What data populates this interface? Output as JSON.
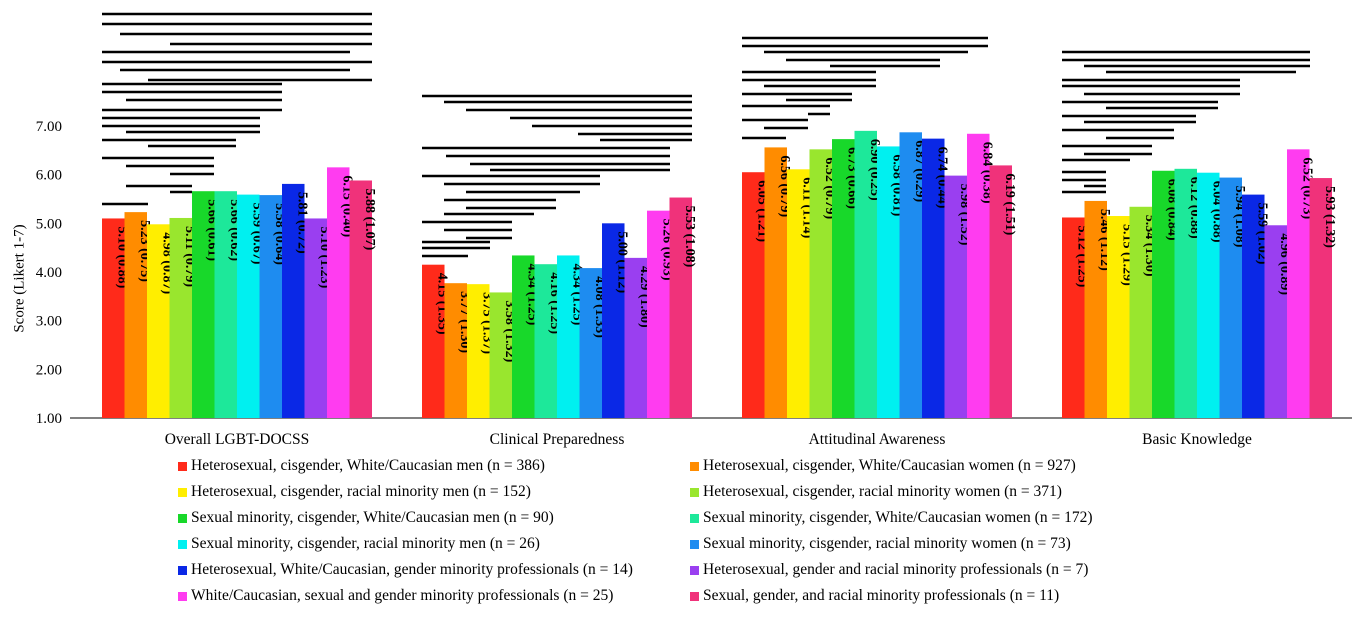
{
  "chart_data": {
    "type": "bar",
    "ylabel": "Score (Likert 1-7)",
    "ylim": [
      1,
      7
    ],
    "yticks": [
      "1.00",
      "2.00",
      "3.00",
      "4.00",
      "5.00",
      "6.00",
      "7.00"
    ],
    "categories": [
      "Overall LGBT-DOCSS",
      "Clinical Preparedness",
      "Attitudinal Awareness",
      "Basic Knowledge"
    ],
    "series": [
      {
        "name": "Heterosexual, cisgender, White/Caucasian men (n = 386)",
        "color": "#ff2a1a",
        "values": [
          5.1,
          4.15,
          6.05,
          5.12
        ],
        "labels": [
          "5.10 (0.88)",
          "4.15 (1.35)",
          "6.05 (1.21)",
          "5.12 (1.25)"
        ]
      },
      {
        "name": "Heterosexual, cisgender, White/Caucasian women (n = 927)",
        "color": "#ff8c00",
        "values": [
          5.23,
          3.77,
          6.56,
          5.46
        ],
        "labels": [
          "5.23 (0.75)",
          "3.77 (1.30)",
          "6.56 (0.79)",
          "5.46 (1.12)"
        ]
      },
      {
        "name": "Heterosexual, cisgender, racial minority men (n = 152)",
        "color": "#ffee00",
        "values": [
          4.98,
          3.75,
          6.11,
          5.15
        ],
        "labels": [
          "4.98 (0.87)",
          "3.75 (1.37)",
          "6.11 (1.14)",
          "5.15 (1.29)"
        ]
      },
      {
        "name": "Heterosexual, cisgender, racial minority women (n = 371)",
        "color": "#99e62e",
        "values": [
          5.11,
          3.58,
          6.52,
          5.34
        ],
        "labels": [
          "5.11 (0.79)",
          "3.58 (1.32)",
          "6.52 (0.79)",
          "5.34 (1.30)"
        ]
      },
      {
        "name": "Sexual minority, cisgender, White/Caucasian men (n = 90)",
        "color": "#18d82a",
        "values": [
          5.66,
          4.34,
          6.73,
          6.08
        ],
        "labels": [
          "5.66 (0.61)",
          "4.34 (1.25)",
          "6.73 (0.66)",
          "6.08 (0.84)"
        ]
      },
      {
        "name": "Sexual minority, cisgender, White/Caucasian women (n = 172)",
        "color": "#1de89a",
        "values": [
          5.66,
          4.16,
          6.9,
          6.12
        ],
        "labels": [
          "5.66 (0.62)",
          "4.16 (1.25)",
          "6.90 (0.25)",
          "6.12 (0.88)"
        ]
      },
      {
        "name": "Sexual minority, cisgender, racial minority men (n = 26)",
        "color": "#00f0f0",
        "values": [
          5.59,
          4.34,
          6.58,
          6.04
        ],
        "labels": [
          "5.59 (0.67)",
          "4.34 (1.25)",
          "6.58 (0.81)",
          "6.04 (0.88)"
        ]
      },
      {
        "name": "Sexual minority, cisgender, racial minority women (n = 73)",
        "color": "#1e8cf0",
        "values": [
          5.58,
          4.08,
          6.87,
          5.94
        ],
        "labels": [
          "5.58 (0.64)",
          "4.08 (1.33)",
          "6.87 (0.29)",
          "5.94 (1.08)"
        ]
      },
      {
        "name": "Heterosexual, White/Caucasian, gender minority professionals (n = 14)",
        "color": "#0a28e6",
        "values": [
          5.81,
          5.0,
          6.74,
          5.59
        ],
        "labels": [
          "5.81 (0.72)",
          "5.00 (1.12)",
          "6.74 (0.44)",
          "5.59 (1.02)"
        ]
      },
      {
        "name": "Heterosexual, gender and racial minority professionals (n = 7)",
        "color": "#9a3ff0",
        "values": [
          5.1,
          4.29,
          5.98,
          4.96
        ],
        "labels": [
          "5.10 (1.23)",
          "4.29 (1.80)",
          "5.98 (1.52)",
          "4.96 (0.89)"
        ]
      },
      {
        "name": "White/Caucasian, sexual and gender minority professionals (n = 25)",
        "color": "#ff3cf0",
        "values": [
          6.15,
          5.26,
          6.84,
          6.52
        ],
        "labels": [
          "6.15 (0.40)",
          "5.26 (0.93)",
          "6.84 (0.38)",
          "6.52 (0.73)"
        ]
      },
      {
        "name": "Sexual, gender, and racial minority professionals (n = 11)",
        "color": "#f0327a",
        "values": [
          5.88,
          5.53,
          6.19,
          5.93
        ],
        "labels": [
          "5.88 (1.07)",
          "5.53 (1.08)",
          "6.19 (1.51)",
          "5.93 (1.32)"
        ]
      }
    ]
  }
}
